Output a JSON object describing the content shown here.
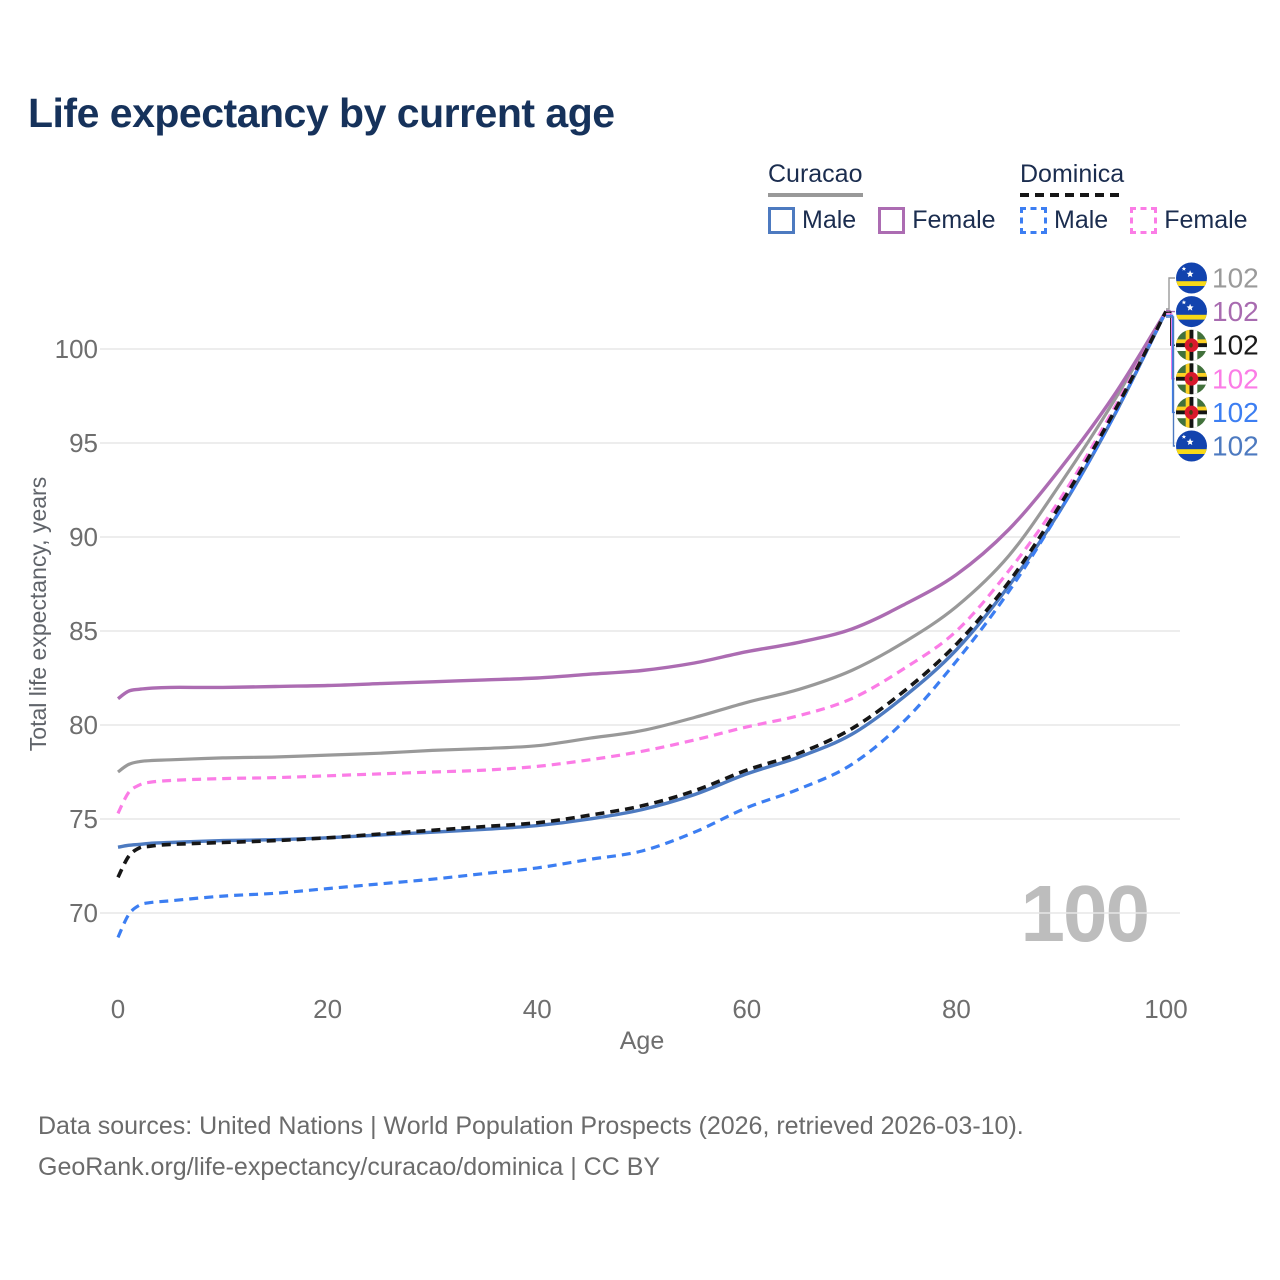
{
  "title": "Life expectancy by current age",
  "legend": {
    "groups": [
      {
        "country": "Curacao",
        "line_style": "solid",
        "underline_color": "#999999",
        "items": [
          {
            "label": "Male",
            "color": "#4d7ac0",
            "dashed": false
          },
          {
            "label": "Female",
            "color": "#ac6cb2",
            "dashed": false
          }
        ]
      },
      {
        "country": "Dominica",
        "line_style": "dashed",
        "underline_color": "#161616",
        "items": [
          {
            "label": "Male",
            "color": "#3c7ef2",
            "dashed": true
          },
          {
            "label": "Female",
            "color": "#fb7ce6",
            "dashed": true
          }
        ]
      }
    ]
  },
  "chart_data": {
    "type": "line",
    "title": "Life expectancy by current age",
    "xlabel": "Age",
    "ylabel": "Total life expectancy, years",
    "xlim": [
      0,
      100
    ],
    "ylim": [
      68,
      103
    ],
    "x_ticks": [
      0,
      20,
      40,
      60,
      80,
      100
    ],
    "y_ticks": [
      70,
      75,
      80,
      85,
      90,
      95,
      100
    ],
    "grid": "horizontal",
    "legend_position": "top-right",
    "watermark": "100",
    "ages": [
      0,
      1,
      2,
      3,
      5,
      10,
      15,
      20,
      25,
      30,
      35,
      40,
      45,
      50,
      55,
      60,
      65,
      70,
      75,
      80,
      85,
      90,
      95,
      100
    ],
    "series": [
      {
        "name": "Curacao",
        "country": "Curacao",
        "sex": "Total",
        "color": "#999999",
        "dashed": false,
        "width": 3.2,
        "values": [
          77.5,
          77.9,
          78.05,
          78.1,
          78.15,
          78.25,
          78.3,
          78.4,
          78.5,
          78.65,
          78.75,
          78.9,
          79.3,
          79.7,
          80.4,
          81.2,
          81.9,
          82.9,
          84.4,
          86.3,
          89.0,
          92.9,
          97.2,
          102
        ]
      },
      {
        "name": "Curacao Female",
        "country": "Curacao",
        "sex": "Female",
        "color": "#ac6cb2",
        "dashed": false,
        "width": 3.4,
        "values": [
          81.4,
          81.8,
          81.9,
          81.95,
          82.0,
          82.0,
          82.05,
          82.1,
          82.2,
          82.3,
          82.4,
          82.5,
          82.7,
          82.9,
          83.3,
          83.9,
          84.4,
          85.1,
          86.4,
          88.0,
          90.4,
          93.7,
          97.5,
          102
        ]
      },
      {
        "name": "Curacao Male",
        "country": "Curacao",
        "sex": "Male",
        "color": "#4d7ac0",
        "dashed": false,
        "width": 3.4,
        "values": [
          73.5,
          73.6,
          73.65,
          73.7,
          73.75,
          73.85,
          73.9,
          74.0,
          74.15,
          74.3,
          74.45,
          74.65,
          75.0,
          75.5,
          76.3,
          77.4,
          78.3,
          79.5,
          81.5,
          84.0,
          87.4,
          91.5,
          96.4,
          102
        ]
      },
      {
        "name": "Dominica Male",
        "country": "Dominica",
        "sex": "Male",
        "color": "#3c7ef2",
        "dashed": true,
        "width": 3.2,
        "values": [
          68.7,
          69.9,
          70.4,
          70.55,
          70.65,
          70.9,
          71.05,
          71.3,
          71.55,
          71.8,
          72.1,
          72.4,
          72.85,
          73.3,
          74.3,
          75.6,
          76.6,
          77.9,
          80.2,
          83.4,
          87.1,
          91.5,
          96.4,
          102
        ]
      },
      {
        "name": "Dominica Female",
        "country": "Dominica",
        "sex": "Female",
        "color": "#fb7ce6",
        "dashed": true,
        "width": 3.2,
        "values": [
          75.3,
          76.4,
          76.8,
          76.95,
          77.05,
          77.15,
          77.2,
          77.3,
          77.4,
          77.5,
          77.6,
          77.8,
          78.15,
          78.6,
          79.2,
          79.9,
          80.5,
          81.4,
          83.0,
          85.0,
          88.2,
          92.1,
          96.8,
          102
        ]
      },
      {
        "name": "Dominica",
        "country": "Dominica",
        "sex": "Total",
        "color": "#161616",
        "dashed": true,
        "width": 3.6,
        "values": [
          71.9,
          73.0,
          73.45,
          73.55,
          73.65,
          73.75,
          73.85,
          74.0,
          74.2,
          74.4,
          74.6,
          74.8,
          75.2,
          75.7,
          76.5,
          77.6,
          78.5,
          79.8,
          81.8,
          84.3,
          87.6,
          91.8,
          96.6,
          102
        ]
      }
    ],
    "end_labels": [
      {
        "flag": "curacao",
        "series": "Curacao",
        "value": "102",
        "color": "#9a9a9a"
      },
      {
        "flag": "curacao",
        "series": "Curacao Female",
        "value": "102",
        "color": "#a86bb0"
      },
      {
        "flag": "dominica",
        "series": "Dominica",
        "value": "102",
        "color": "#1a1a1a"
      },
      {
        "flag": "dominica",
        "series": "Dominica Female",
        "value": "102",
        "color": "#fb7ce6"
      },
      {
        "flag": "dominica",
        "series": "Dominica Male",
        "value": "102",
        "color": "#3c7ef2"
      },
      {
        "flag": "curacao",
        "series": "Curacao Male",
        "value": "102",
        "color": "#4d7ac0"
      }
    ]
  },
  "footer": {
    "line1": "Data sources: United Nations | World Population Prospects (2026, retrieved 2026-03-10).",
    "line2": "GeoRank.org/life-expectancy/curacao/dominica | CC BY"
  }
}
